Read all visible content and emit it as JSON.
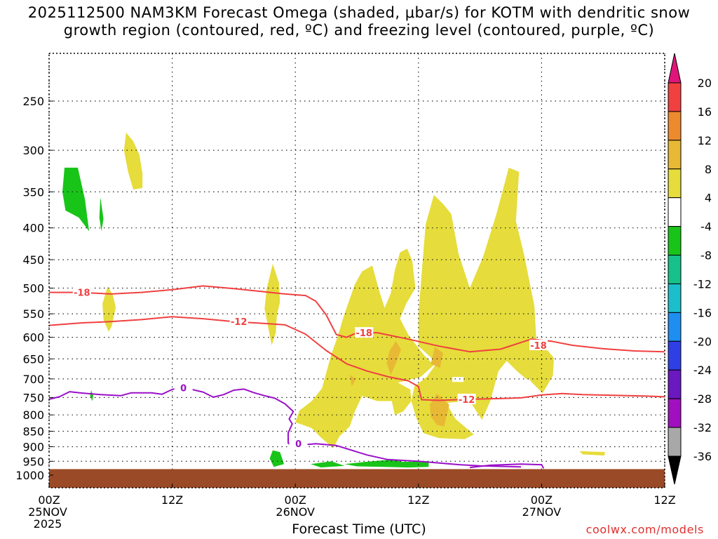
{
  "title": {
    "line1": "2025112500 NAM3KM Forecast Omega (shaded, μbar/s) for KOTM with dendritic snow",
    "line2": "growth region (contoured, red, ºC) and freezing level (contoured, purple, ºC)"
  },
  "credit": "coolwx.com/models",
  "chart_data": {
    "type": "time-height cross section",
    "xlabel": "Forecast Time (UTC)",
    "ylabel": "",
    "x_units": "forecast hour",
    "xlim": [
      0,
      60
    ],
    "ylim": [
      1000,
      200
    ],
    "y_ticks": [
      250,
      300,
      350,
      400,
      450,
      500,
      550,
      600,
      650,
      700,
      750,
      800,
      850,
      900,
      950,
      1000
    ],
    "x_ticks": [
      {
        "hour": 0,
        "lines": [
          "00Z",
          "25NOV",
          "2025"
        ]
      },
      {
        "hour": 12,
        "lines": [
          "12Z"
        ]
      },
      {
        "hour": 24,
        "lines": [
          "00Z",
          "26NOV"
        ]
      },
      {
        "hour": 36,
        "lines": [
          "12Z"
        ]
      },
      {
        "hour": 48,
        "lines": [
          "00Z",
          "27NOV"
        ]
      },
      {
        "hour": 60,
        "lines": [
          "12Z"
        ]
      }
    ],
    "grid": true,
    "colorbar": {
      "labels": [
        "20",
        "16",
        "12",
        "8",
        "4",
        "-4",
        "-8",
        "-12",
        "-16",
        "-20",
        "-24",
        "-28",
        "-32",
        "-36"
      ],
      "colors": [
        "#e0157a",
        "#f04040",
        "#ee8a2e",
        "#e8b935",
        "#e6dc3b",
        "#ffffff",
        "#19c419",
        "#16c28a",
        "#1bbfcc",
        "#1e8ff0",
        "#2f3fe6",
        "#6a18c0",
        "#a010c0",
        "#a8a8a8",
        "#000000"
      ]
    },
    "series": [
      {
        "name": "-18",
        "color": "#f04040",
        "kind": "dendritic_contour",
        "points": [
          [
            0,
            508
          ],
          [
            3,
            508
          ],
          [
            6,
            511
          ],
          [
            9,
            508
          ],
          [
            12,
            503
          ],
          [
            15,
            496
          ],
          [
            18,
            501
          ],
          [
            21,
            507
          ],
          [
            23,
            511
          ],
          [
            25,
            514
          ],
          [
            26,
            525
          ],
          [
            27,
            552
          ],
          [
            28,
            594
          ],
          [
            29,
            600
          ],
          [
            30,
            590
          ],
          [
            32,
            590
          ],
          [
            35,
            604
          ],
          [
            38,
            620
          ],
          [
            41,
            633
          ],
          [
            44,
            627
          ],
          [
            47,
            604
          ],
          [
            49,
            609
          ],
          [
            51,
            618
          ],
          [
            54,
            626
          ],
          [
            57,
            631
          ],
          [
            60,
            633
          ]
        ]
      },
      {
        "name": "-12",
        "color": "#f04040",
        "kind": "dendritic_contour",
        "points": [
          [
            0,
            574
          ],
          [
            3,
            569
          ],
          [
            6,
            566
          ],
          [
            9,
            562
          ],
          [
            12,
            556
          ],
          [
            15,
            560
          ],
          [
            18,
            566
          ],
          [
            21,
            570
          ],
          [
            23,
            573
          ],
          [
            25,
            593
          ],
          [
            27,
            630
          ],
          [
            29,
            662
          ],
          [
            31,
            680
          ],
          [
            33,
            694
          ],
          [
            35,
            705
          ],
          [
            36,
            720
          ],
          [
            36.3,
            756
          ],
          [
            38,
            758
          ],
          [
            41,
            755
          ],
          [
            44,
            753
          ],
          [
            46,
            751
          ],
          [
            48,
            743
          ],
          [
            50,
            739
          ],
          [
            52,
            742
          ],
          [
            55,
            744
          ],
          [
            58,
            746
          ],
          [
            60,
            748
          ]
        ]
      },
      {
        "name": "0",
        "color": "#9a10c8",
        "kind": "freezing_level",
        "points": [
          [
            0,
            755
          ],
          [
            1,
            748
          ],
          [
            2,
            734
          ],
          [
            3,
            737
          ],
          [
            5,
            742
          ],
          [
            7,
            745
          ],
          [
            8,
            737
          ],
          [
            10,
            737
          ],
          [
            11,
            741
          ],
          [
            12,
            728
          ],
          [
            13,
            722
          ],
          [
            15,
            735
          ],
          [
            16,
            749
          ],
          [
            17,
            742
          ],
          [
            18,
            730
          ],
          [
            19,
            727
          ],
          [
            20,
            737
          ],
          [
            21,
            745
          ],
          [
            22,
            752
          ],
          [
            23,
            768
          ],
          [
            23.8,
            790
          ],
          [
            23.4,
            812
          ],
          [
            23.7,
            827
          ],
          [
            23.3,
            855
          ],
          [
            23.3,
            888
          ],
          [
            23.7,
            898
          ],
          [
            25,
            893
          ],
          [
            26,
            890
          ],
          [
            28,
            896
          ],
          [
            31,
            928
          ],
          [
            33,
            944
          ],
          [
            36,
            950
          ],
          [
            40,
            962
          ],
          [
            42,
            966
          ],
          [
            44,
            968
          ],
          [
            46,
            970
          ]
        ]
      },
      {
        "name": "0",
        "color": "#9a10c8",
        "kind": "freezing_level",
        "points": [
          [
            41,
            972
          ],
          [
            43,
            964
          ],
          [
            46,
            960
          ],
          [
            48,
            962
          ],
          [
            48.2,
            975
          ]
        ]
      }
    ],
    "annotations": [
      {
        "text": "-18",
        "color": "#f04040",
        "hour": 3.2,
        "p": 508
      },
      {
        "text": "-12",
        "color": "#f04040",
        "hour": 18.5,
        "p": 566
      },
      {
        "text": "-18",
        "color": "#f04040",
        "hour": 30.7,
        "p": 590
      },
      {
        "text": "-12",
        "color": "#f04040",
        "hour": 40.7,
        "p": 755
      },
      {
        "text": "-18",
        "color": "#f04040",
        "hour": 47.7,
        "p": 618
      },
      {
        "text": "0",
        "color": "#9a10c8",
        "hour": 13.1,
        "p": 723
      },
      {
        "text": "0",
        "color": "#9a10c8",
        "hour": 24.3,
        "p": 890
      }
    ],
    "shaded_regions": [
      {
        "band": "4 to 8",
        "color": "#e6dc3b",
        "points": [
          [
            7.5,
            281
          ],
          [
            8.2,
            290
          ],
          [
            8.8,
            305
          ],
          [
            9.1,
            327
          ],
          [
            9.1,
            345
          ],
          [
            8.2,
            347
          ],
          [
            7.7,
            325
          ],
          [
            7.3,
            300
          ]
        ]
      },
      {
        "band": "4 to 8",
        "color": "#e6dc3b",
        "points": [
          [
            5.7,
            497
          ],
          [
            6.2,
            512
          ],
          [
            6.5,
            537
          ],
          [
            6.1,
            576
          ],
          [
            5.8,
            588
          ],
          [
            5.3,
            562
          ],
          [
            5.2,
            530
          ]
        ]
      },
      {
        "band": "4 to 8",
        "color": "#e6dc3b",
        "points": [
          [
            21.8,
            457
          ],
          [
            22.4,
            490
          ],
          [
            22.5,
            527
          ],
          [
            22.2,
            552
          ],
          [
            22.1,
            590
          ],
          [
            21.7,
            618
          ],
          [
            21.3,
            572
          ],
          [
            21,
            540
          ],
          [
            21.2,
            502
          ]
        ]
      },
      {
        "band": "4 to 8",
        "color": "#e6dc3b",
        "points": [
          [
            29.8,
            493
          ],
          [
            30.5,
            470
          ],
          [
            31.5,
            460
          ],
          [
            32.1,
            500
          ],
          [
            32.7,
            538
          ],
          [
            33.3,
            510
          ],
          [
            33.7,
            468
          ],
          [
            34.2,
            438
          ],
          [
            34.9,
            432
          ],
          [
            35.4,
            452
          ],
          [
            35.7,
            500
          ],
          [
            34.8,
            530
          ],
          [
            34.2,
            560
          ],
          [
            35,
            594
          ],
          [
            36.5,
            640
          ],
          [
            37.5,
            665
          ],
          [
            36.2,
            695
          ],
          [
            34,
            710
          ],
          [
            35.2,
            728
          ],
          [
            35.3,
            760
          ],
          [
            34.5,
            790
          ],
          [
            33.7,
            800
          ],
          [
            33.4,
            760
          ],
          [
            32,
            760
          ],
          [
            30.5,
            746
          ],
          [
            29.8,
            790
          ],
          [
            29.3,
            835
          ],
          [
            28.3,
            866
          ],
          [
            27.7,
            905
          ],
          [
            26.5,
            870
          ],
          [
            25.6,
            840
          ],
          [
            24,
            822
          ],
          [
            24.4,
            787
          ],
          [
            25.6,
            760
          ],
          [
            26.6,
            725
          ],
          [
            27.5,
            640
          ],
          [
            28.1,
            600
          ],
          [
            28.8,
            550
          ]
        ]
      },
      {
        "band": "4 to 8",
        "color": "#e6dc3b",
        "points": [
          [
            36.7,
            395
          ],
          [
            37.5,
            354
          ],
          [
            38.4,
            366
          ],
          [
            39.2,
            380
          ],
          [
            39.9,
            440
          ],
          [
            41,
            500
          ],
          [
            42.3,
            445
          ],
          [
            43.6,
            380
          ],
          [
            44.8,
            320
          ],
          [
            45.8,
            325
          ],
          [
            45.5,
            390
          ],
          [
            46.3,
            442
          ],
          [
            47.3,
            535
          ],
          [
            47.7,
            700
          ],
          [
            46.5,
            700
          ],
          [
            45.6,
            680
          ],
          [
            44.6,
            655
          ],
          [
            43.8,
            680
          ],
          [
            43,
            760
          ],
          [
            42.2,
            815
          ],
          [
            41,
            760
          ],
          [
            38.7,
            765
          ],
          [
            39.6,
            812
          ],
          [
            41.4,
            860
          ],
          [
            40.5,
            875
          ],
          [
            38,
            872
          ],
          [
            36.5,
            856
          ],
          [
            35.8,
            810
          ],
          [
            35.3,
            760
          ],
          [
            35.6,
            720
          ],
          [
            36.8,
            695
          ],
          [
            37.8,
            660
          ],
          [
            36,
            620
          ],
          [
            36,
            550
          ]
        ]
      },
      {
        "band": "4 to 8",
        "color": "#e6dc3b",
        "points": [
          [
            46.2,
            615
          ],
          [
            48,
            613
          ],
          [
            49.2,
            648
          ],
          [
            49.1,
            692
          ],
          [
            48.1,
            738
          ],
          [
            47,
            708
          ],
          [
            46.2,
            680
          ]
        ]
      },
      {
        "band": "4 to 8",
        "color": "#e6dc3b",
        "points": [
          [
            51.7,
            915
          ],
          [
            54.2,
            918
          ],
          [
            54.1,
            930
          ],
          [
            52,
            926
          ]
        ]
      },
      {
        "band": "8 to 12",
        "color": "#e8b935",
        "points": [
          [
            33.8,
            608
          ],
          [
            34.3,
            628
          ],
          [
            33.9,
            655
          ],
          [
            33.3,
            690
          ],
          [
            32.9,
            660
          ],
          [
            33.2,
            630
          ]
        ]
      },
      {
        "band": "8 to 12",
        "color": "#e8b935",
        "points": [
          [
            29.3,
            690
          ],
          [
            29.9,
            700
          ],
          [
            29.5,
            720
          ]
        ]
      },
      {
        "band": "8 to 12",
        "color": "#e8b935",
        "points": [
          [
            37.6,
            622
          ],
          [
            38.4,
            636
          ],
          [
            38.1,
            672
          ],
          [
            37.2,
            662
          ]
        ]
      },
      {
        "band": "8 to 12",
        "color": "#e8b935",
        "points": [
          [
            37.8,
            740
          ],
          [
            39,
            770
          ],
          [
            38.5,
            835
          ],
          [
            37.8,
            830
          ],
          [
            37.2,
            805
          ],
          [
            37.1,
            770
          ]
        ]
      },
      {
        "band": "-4 to -8",
        "color": "#19c419",
        "points": [
          [
            1.5,
            320
          ],
          [
            2.8,
            320
          ],
          [
            3.5,
            360
          ],
          [
            3.9,
            405
          ],
          [
            2.9,
            385
          ],
          [
            1.6,
            375
          ],
          [
            1.3,
            350
          ]
        ]
      },
      {
        "band": "-4 to -8",
        "color": "#19c419",
        "points": [
          [
            5,
            357
          ],
          [
            5.3,
            387
          ],
          [
            5.1,
            405
          ],
          [
            4.9,
            385
          ]
        ]
      },
      {
        "band": "-4 to -8",
        "color": "#19c419",
        "points": [
          [
            4.1,
            730
          ],
          [
            4.3,
            745
          ],
          [
            4.2,
            760
          ],
          [
            4,
            745
          ]
        ]
      },
      {
        "band": "-4 to -8",
        "color": "#19c419",
        "points": [
          [
            21.8,
            912
          ],
          [
            22.5,
            918
          ],
          [
            22.9,
            960
          ],
          [
            21.9,
            970
          ],
          [
            21.5,
            940
          ]
        ]
      },
      {
        "band": "-4 to -8",
        "color": "#19c419",
        "points": [
          [
            25.5,
            960
          ],
          [
            27.5,
            950
          ],
          [
            28.8,
            966
          ],
          [
            26.5,
            972
          ]
        ]
      },
      {
        "band": "-4 to -8",
        "color": "#19c419",
        "points": [
          [
            28.8,
            960
          ],
          [
            30.8,
            952
          ],
          [
            33.5,
            944
          ],
          [
            34.5,
            952
          ],
          [
            37,
            950
          ],
          [
            37,
            970
          ],
          [
            35,
            972
          ],
          [
            32.5,
            970
          ],
          [
            30,
            968
          ]
        ]
      }
    ],
    "white_holes": [
      {
        "points": [
          [
            39.3,
            695
          ],
          [
            40.4,
            695
          ],
          [
            40.4,
            708
          ],
          [
            39.3,
            708
          ]
        ]
      }
    ],
    "ground": {
      "color": "#9a4a26",
      "top_p": 978,
      "bottom_p": 1000
    }
  }
}
